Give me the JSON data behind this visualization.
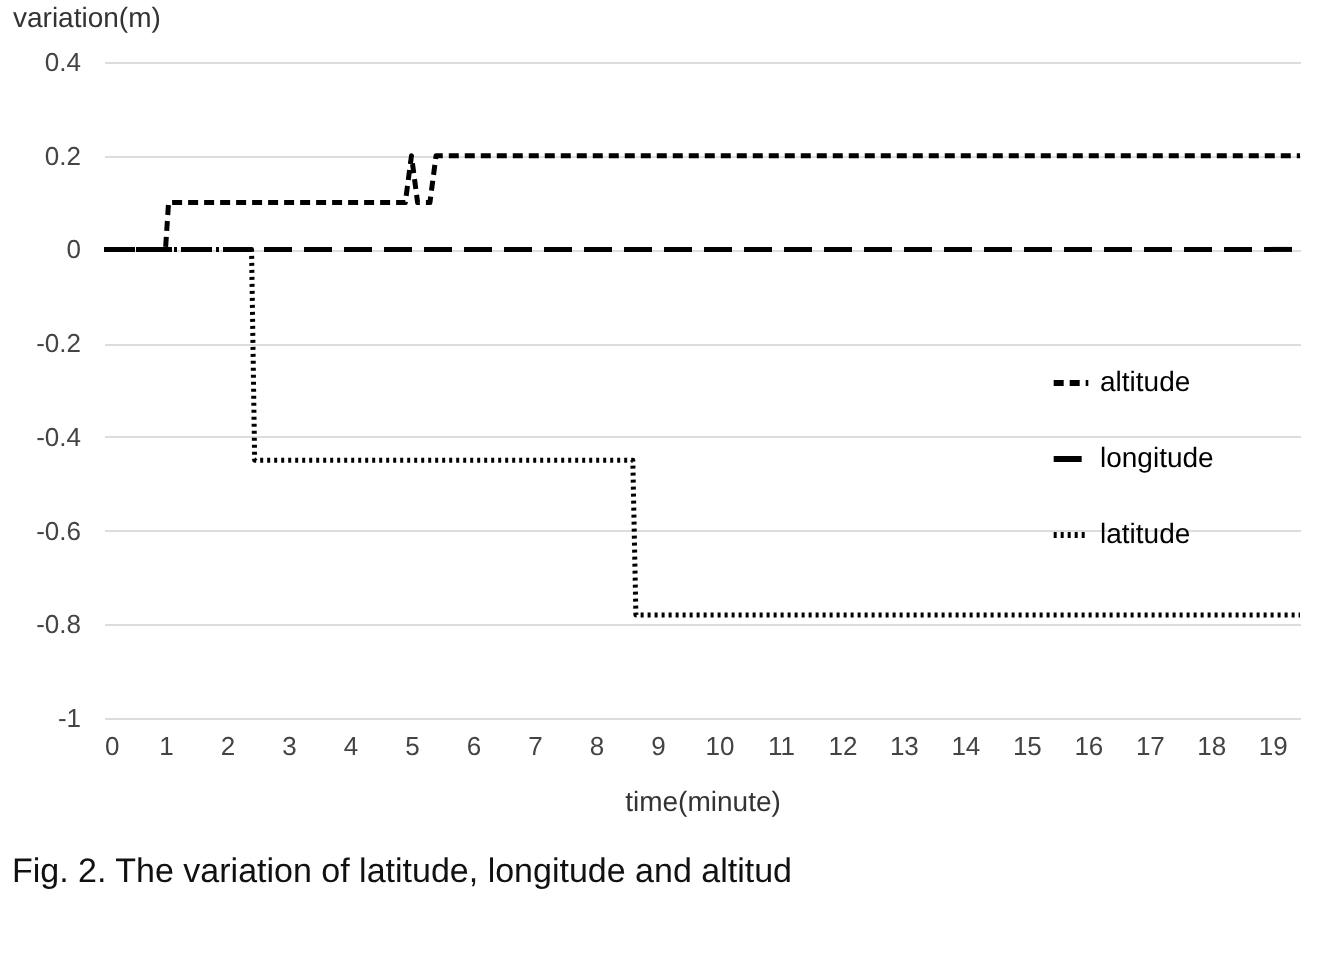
{
  "chart_data": {
    "type": "line",
    "ylabel": "variation(m)",
    "xlabel": "time(minute)",
    "annotations": [
      "Fig. 2. The variation of latitude, longitude and altitud"
    ],
    "xlim": [
      0,
      19.45
    ],
    "xticks": [
      0,
      1,
      2,
      3,
      4,
      5,
      6,
      7,
      8,
      9,
      10,
      11,
      12,
      13,
      14,
      15,
      16,
      17,
      18,
      19
    ],
    "ylim": [
      -1,
      0.4
    ],
    "yticks": [
      -1,
      -0.8,
      -0.6,
      -0.4,
      -0.2,
      0,
      0.2,
      0.4
    ],
    "grid": "y",
    "legend": "right",
    "series": [
      {
        "name": "altitude",
        "color": "#000000",
        "line_style": "dashed",
        "x": [
          0,
          1,
          1.05,
          4.9,
          5.0,
          5.1,
          5.3,
          5.4,
          19.45
        ],
        "values": [
          0,
          0,
          0.1,
          0.1,
          0.2,
          0.1,
          0.1,
          0.2,
          0.2
        ]
      },
      {
        "name": "longitude",
        "color": "#000000",
        "line_style": "longdash",
        "x": [
          0,
          19.45
        ],
        "values": [
          0,
          0
        ]
      },
      {
        "name": "latitude",
        "color": "#000000",
        "line_style": "dotted",
        "x": [
          0,
          2.4,
          2.45,
          8.6,
          8.65,
          19.45
        ],
        "values": [
          0,
          0,
          -0.45,
          -0.45,
          -0.78,
          -0.78
        ]
      }
    ]
  }
}
